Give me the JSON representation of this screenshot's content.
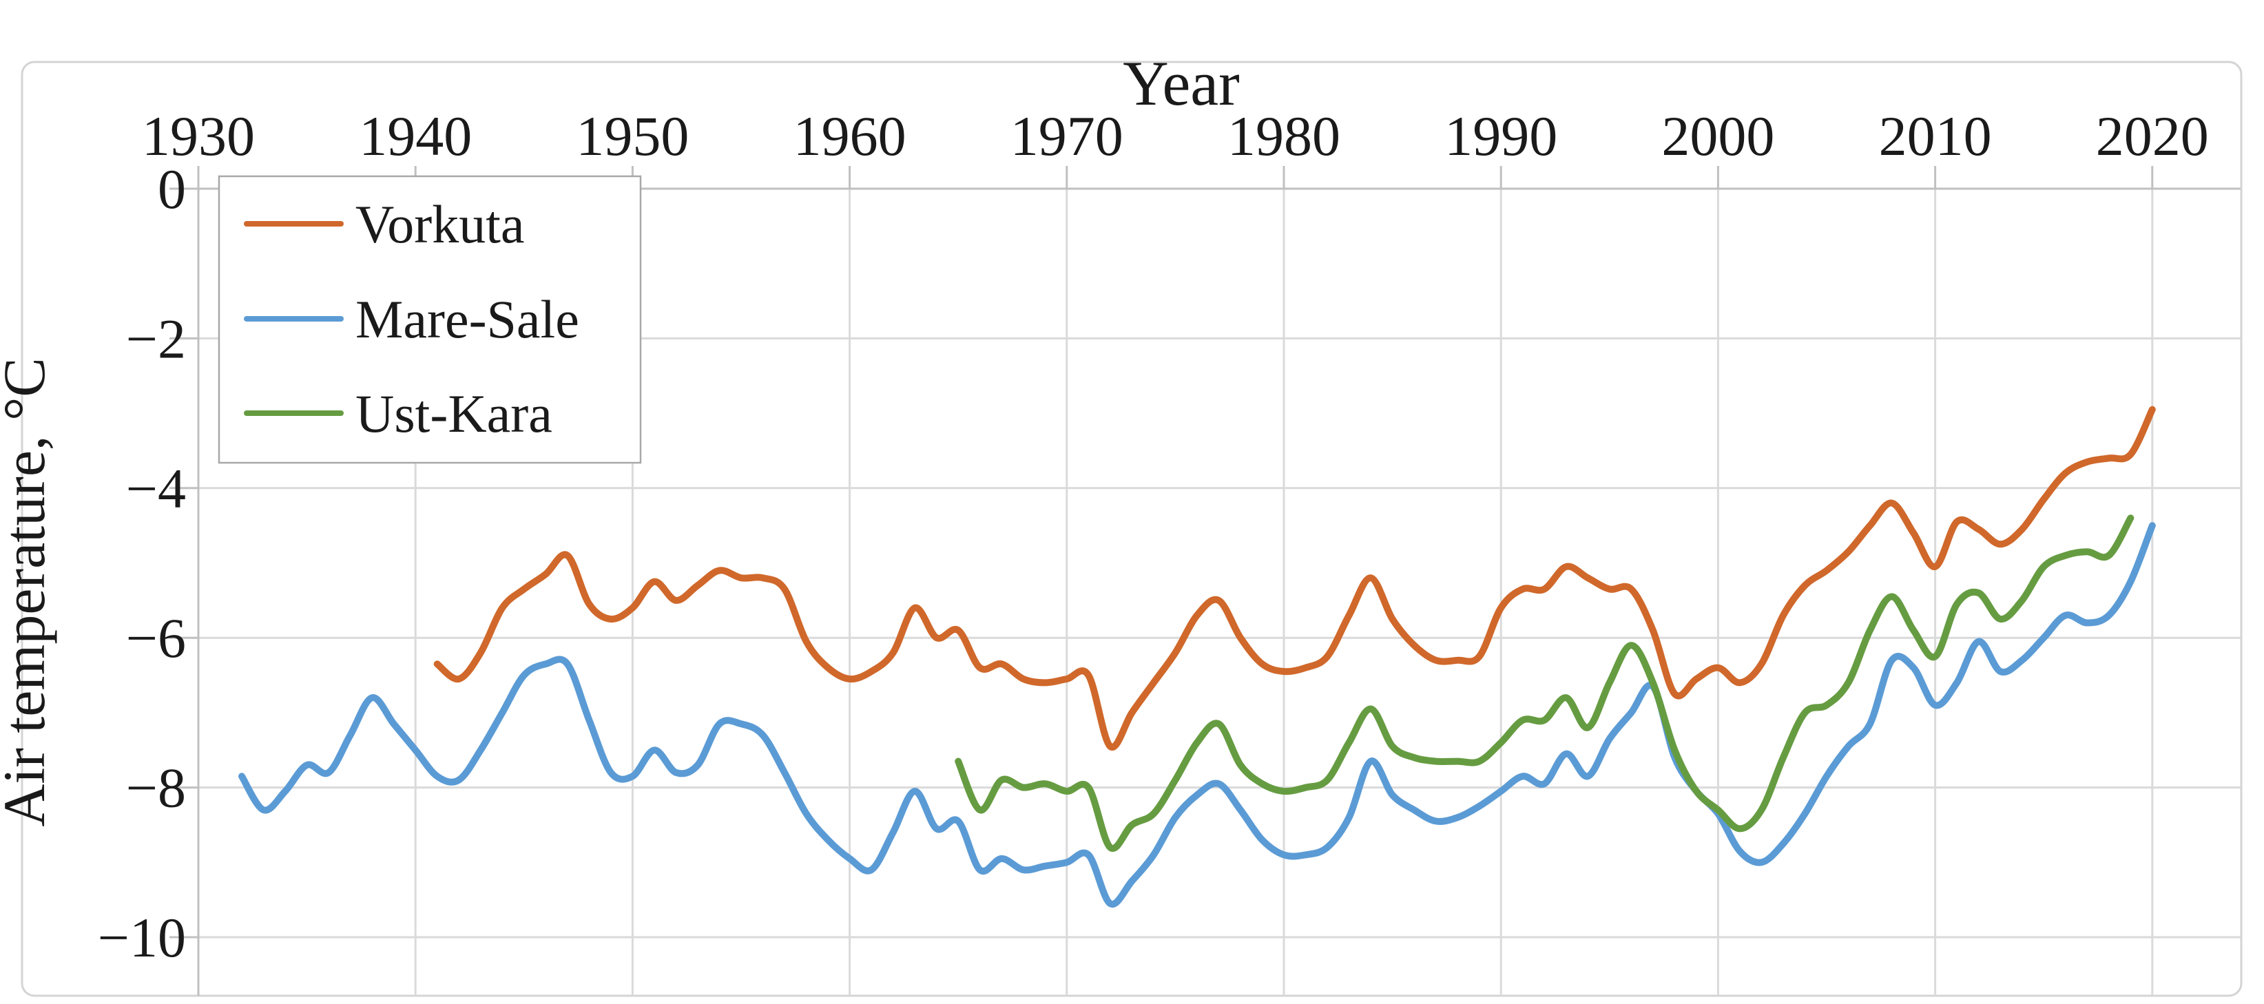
{
  "chart_data": {
    "type": "line",
    "title": "",
    "x_axis": {
      "label": "Year",
      "min": 1930,
      "max": 2024,
      "ticks": [
        1930,
        1940,
        1950,
        1960,
        1970,
        1980,
        1990,
        2000,
        2010,
        2020
      ]
    },
    "y_axis": {
      "label": "Air temperature, °C",
      "min": -10.8,
      "max": 0,
      "ticks": [
        0,
        -2,
        -4,
        -6,
        -8,
        -10
      ],
      "tick_labels": [
        "0",
        "−2",
        "−4",
        "−6",
        "−8",
        "−10"
      ]
    },
    "grid": true,
    "legend_position": "top-left-inside",
    "series": [
      {
        "name": "Vorkuta",
        "color": "#d0682b",
        "start_year": 1941,
        "values": [
          -6.35,
          -6.55,
          -6.2,
          -5.6,
          -5.35,
          -5.15,
          -4.9,
          -5.55,
          -5.75,
          -5.6,
          -5.25,
          -5.5,
          -5.3,
          -5.1,
          -5.2,
          -5.2,
          -5.35,
          -6.05,
          -6.4,
          -6.55,
          -6.45,
          -6.2,
          -5.6,
          -6.0,
          -5.9,
          -6.4,
          -6.35,
          -6.55,
          -6.6,
          -6.55,
          -6.5,
          -7.45,
          -7.0,
          -6.6,
          -6.2,
          -5.7,
          -5.5,
          -6.0,
          -6.35,
          -6.45,
          -6.4,
          -6.25,
          -5.7,
          -5.2,
          -5.75,
          -6.1,
          -6.3,
          -6.3,
          -6.25,
          -5.6,
          -5.35,
          -5.35,
          -5.05,
          -5.2,
          -5.35,
          -5.35,
          -5.9,
          -6.75,
          -6.55,
          -6.4,
          -6.6,
          -6.35,
          -5.7,
          -5.3,
          -5.1,
          -4.85,
          -4.5,
          -4.2,
          -4.6,
          -5.05,
          -4.45,
          -4.55,
          -4.75,
          -4.55,
          -4.15,
          -3.8,
          -3.65,
          -3.6,
          -3.55,
          -2.95
        ]
      },
      {
        "name": "Mare-Sale",
        "color": "#5b9bd5",
        "start_year": 1932,
        "values": [
          -7.85,
          -8.3,
          -8.05,
          -7.7,
          -7.8,
          -7.3,
          -6.8,
          -7.15,
          -7.5,
          -7.85,
          -7.9,
          -7.5,
          -7.0,
          -6.5,
          -6.35,
          -6.35,
          -7.1,
          -7.8,
          -7.85,
          -7.5,
          -7.8,
          -7.7,
          -7.15,
          -7.15,
          -7.3,
          -7.8,
          -8.35,
          -8.7,
          -8.95,
          -9.1,
          -8.6,
          -8.05,
          -8.55,
          -8.45,
          -9.1,
          -8.95,
          -9.1,
          -9.05,
          -9.0,
          -8.9,
          -9.55,
          -9.25,
          -8.9,
          -8.4,
          -8.1,
          -7.95,
          -8.3,
          -8.7,
          -8.9,
          -8.9,
          -8.8,
          -8.4,
          -7.65,
          -8.1,
          -8.3,
          -8.45,
          -8.4,
          -8.25,
          -8.05,
          -7.85,
          -7.95,
          -7.55,
          -7.85,
          -7.35,
          -7.0,
          -6.65,
          -7.6,
          -8.05,
          -8.35,
          -8.85,
          -9.0,
          -8.75,
          -8.35,
          -7.85,
          -7.45,
          -7.15,
          -6.3,
          -6.4,
          -6.9,
          -6.6,
          -6.05,
          -6.45,
          -6.3,
          -6.0,
          -5.7,
          -5.8,
          -5.7,
          -5.25,
          -4.5
        ]
      },
      {
        "name": "Ust-Kara",
        "color": "#669c41",
        "start_year": 1965,
        "values": [
          -7.65,
          -8.3,
          -7.9,
          -8.0,
          -7.95,
          -8.05,
          -8.0,
          -8.8,
          -8.5,
          -8.35,
          -7.9,
          -7.4,
          -7.15,
          -7.7,
          -7.95,
          -8.05,
          -8.0,
          -7.9,
          -7.4,
          -6.95,
          -7.45,
          -7.6,
          -7.65,
          -7.65,
          -7.65,
          -7.4,
          -7.1,
          -7.1,
          -6.8,
          -7.2,
          -6.6,
          -6.1,
          -6.6,
          -7.5,
          -8.05,
          -8.3,
          -8.55,
          -8.3,
          -7.6,
          -7.0,
          -6.9,
          -6.6,
          -5.9,
          -5.45,
          -5.9,
          -6.25,
          -5.55,
          -5.4,
          -5.75,
          -5.5,
          -5.05,
          -4.9,
          -4.85,
          -4.9,
          -4.4
        ]
      }
    ]
  },
  "colors": {
    "background": "#ffffff",
    "outer_border": "#d4d4d4",
    "gridline": "#dadada",
    "axis_line": "#c0c0c0",
    "text": "#1a1a1a",
    "legend_border": "#a8a8a8"
  }
}
